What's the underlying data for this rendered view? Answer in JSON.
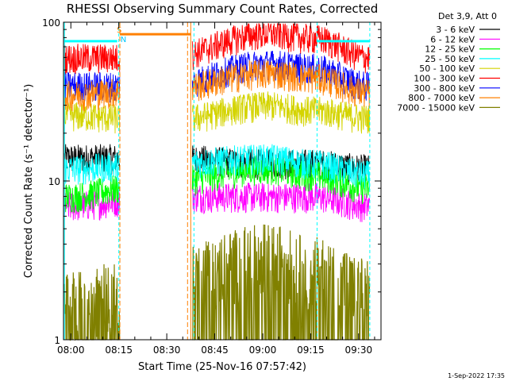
{
  "chart_data": {
    "type": "line",
    "title": "RHESSI Observing Summary Count Rates, Corrected",
    "xlabel": "Start Time (25-Nov-16 07:57:42)",
    "ylabel": "Corrected Count Rate (s⁻¹ detector⁻¹)",
    "yscale": "log",
    "ylim": [
      1,
      100
    ],
    "xlim": [
      "07:57:42",
      "09:37:00"
    ],
    "x_ticks": [
      "08:00",
      "08:15",
      "08:30",
      "08:45",
      "09:00",
      "09:15",
      "09:30"
    ],
    "y_ticks": [
      "1",
      "10",
      "100"
    ],
    "legend_title": "Det 3,9, Att 0",
    "legend_position": "outside-right",
    "timestamp": "1-Sep-2022 17:35",
    "flags": {
      "S": "S",
      "N": "N"
    },
    "gaps": [
      [
        "08:15:20",
        "08:37:30"
      ]
    ],
    "series": [
      {
        "name": "3 - 6 keV",
        "color": "#000000",
        "day": [
          14,
          14,
          13,
          13,
          12
        ]
      },
      {
        "name": "6 - 12 keV",
        "color": "#ff00ff",
        "day": [
          7,
          8,
          8,
          8,
          7
        ]
      },
      {
        "name": "12 - 25 keV",
        "color": "#00ff00",
        "day": [
          8,
          10,
          12,
          11,
          9
        ]
      },
      {
        "name": "25 - 50 keV",
        "color": "#00ffff",
        "day": [
          12,
          13,
          14,
          13,
          11
        ]
      },
      {
        "name": "50 - 100 keV",
        "color": "#d4d400",
        "day": [
          26,
          24,
          30,
          28,
          25
        ]
      },
      {
        "name": "100 - 300 keV",
        "color": "#ff0000",
        "day": [
          60,
          60,
          85,
          80,
          60
        ]
      },
      {
        "name": "300 - 800 keV",
        "color": "#0000ff",
        "day": [
          40,
          40,
          55,
          52,
          40
        ]
      },
      {
        "name": "800 - 7000 keV",
        "color": "#ff8000",
        "day": [
          35,
          38,
          48,
          45,
          36
        ]
      },
      {
        "name": "7000 - 15000 keV",
        "color": "#808000",
        "day": [
          1.5,
          2,
          3,
          2.5,
          1.8
        ]
      }
    ]
  }
}
